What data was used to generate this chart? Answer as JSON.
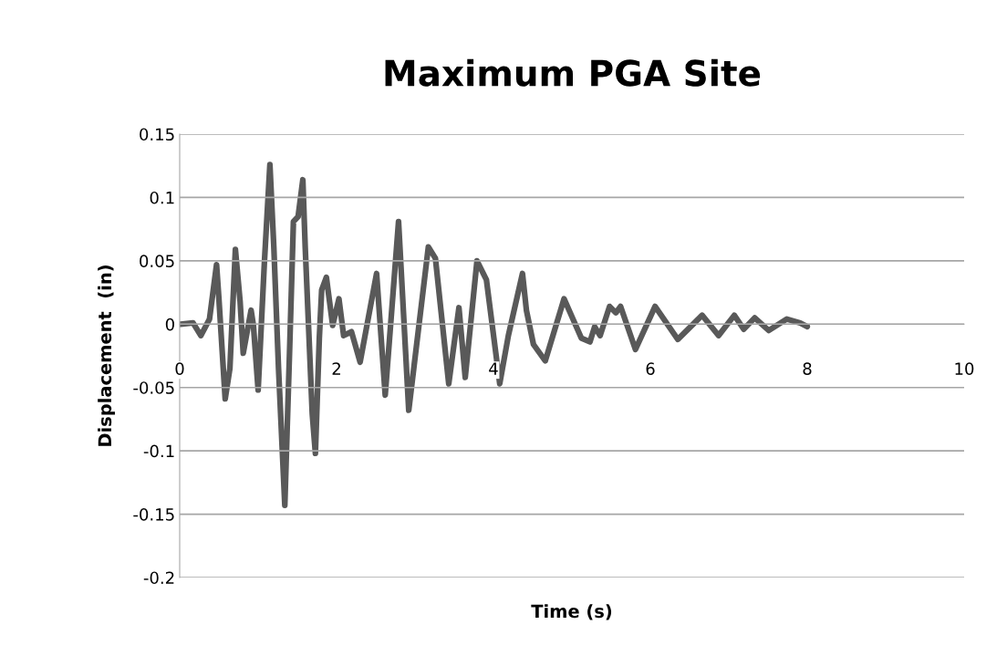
{
  "chart_data": {
    "type": "line",
    "title": "Maximum PGA Site",
    "xlabel": "Time (s)",
    "ylabel": "Displacement  (in)",
    "x": [
      0.01,
      0.17,
      0.27,
      0.38,
      0.47,
      0.5,
      0.58,
      0.64,
      0.71,
      0.77,
      0.81,
      0.91,
      0.94,
      1.0,
      1.08,
      1.15,
      1.2,
      1.26,
      1.34,
      1.4,
      1.45,
      1.51,
      1.57,
      1.6,
      1.69,
      1.73,
      1.78,
      1.81,
      1.87,
      1.95,
      2.03,
      2.09,
      2.19,
      2.3,
      2.51,
      2.62,
      2.79,
      2.92,
      3.17,
      3.26,
      3.43,
      3.56,
      3.64,
      3.79,
      3.91,
      4.08,
      4.19,
      4.37,
      4.42,
      4.51,
      4.66,
      4.9,
      5.12,
      5.23,
      5.29,
      5.36,
      5.48,
      5.56,
      5.62,
      5.81,
      6.06,
      6.35,
      6.66,
      6.87,
      7.07,
      7.19,
      7.33,
      7.51,
      7.74,
      7.91,
      8.0
    ],
    "series": [
      {
        "color": "#595959",
        "values": [
          0.0,
          0.001,
          -0.009,
          0.004,
          0.047,
          0.02,
          -0.059,
          -0.035,
          0.059,
          0.018,
          -0.023,
          0.011,
          -0.001,
          -0.052,
          0.049,
          0.126,
          0.061,
          -0.035,
          -0.143,
          -0.023,
          0.081,
          0.085,
          0.114,
          0.061,
          -0.071,
          -0.102,
          -0.011,
          0.027,
          0.037,
          -0.001,
          0.02,
          -0.009,
          -0.006,
          -0.03,
          0.04,
          -0.056,
          0.081,
          -0.068,
          0.061,
          0.052,
          -0.047,
          0.013,
          -0.042,
          0.05,
          0.035,
          -0.047,
          -0.009,
          0.04,
          0.011,
          -0.016,
          -0.029,
          0.02,
          -0.011,
          -0.014,
          -0.002,
          -0.009,
          0.014,
          0.009,
          0.014,
          -0.02,
          0.014,
          -0.012,
          0.007,
          -0.009,
          0.007,
          -0.004,
          0.005,
          -0.005,
          0.004,
          0.001,
          -0.002
        ]
      }
    ],
    "xlim": [
      0,
      10
    ],
    "xticks": [
      0,
      2,
      4,
      6,
      8,
      10
    ],
    "ylim": [
      -0.2,
      0.15
    ],
    "yticks": [
      -0.2,
      -0.15,
      -0.1,
      -0.05,
      0,
      0.05,
      0.1,
      0.15
    ],
    "grid": "y",
    "legend": false,
    "marker": "none",
    "line_style": "solid"
  }
}
